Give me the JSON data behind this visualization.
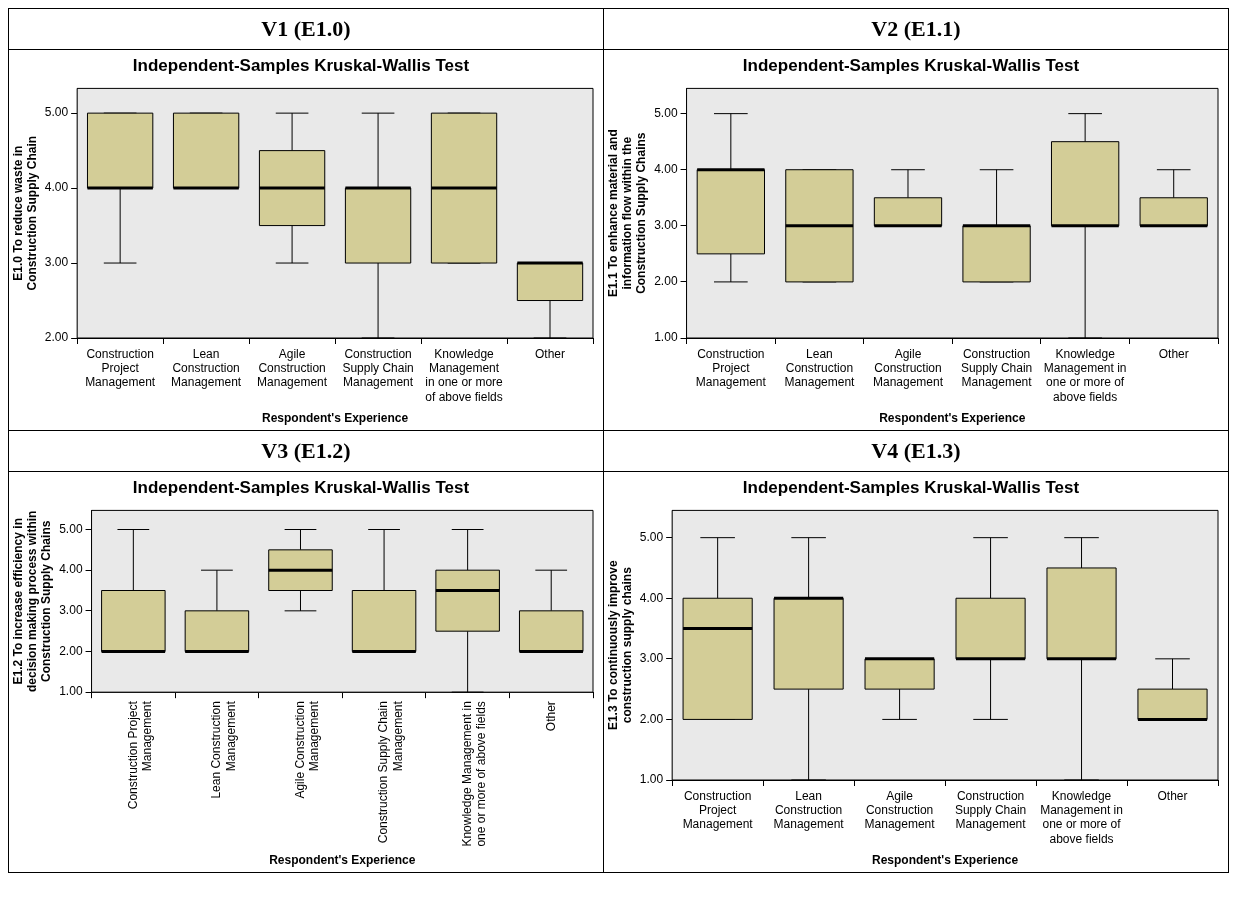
{
  "chart_data": [
    {
      "type": "box",
      "title": "V1 (E1.0)",
      "subtitle": "Independent-Samples Kruskal-Wallis Test",
      "xlabel": "Respondent's Experience",
      "ylabel": "E1.0 To reduce waste in Construction Supply Chain",
      "color": "#d3cd97",
      "categories": [
        "Construction Project Management",
        "Lean Construction Management",
        "Agile Construction Management",
        "Construction Supply Chain Management",
        "Knowledge Management in one or more of above fields",
        "Other"
      ],
      "boxes": [
        {
          "low": 3,
          "q1": 4,
          "median": 4,
          "q3": 5,
          "high": 5
        },
        {
          "low": 4,
          "q1": 4,
          "median": 4,
          "q3": 5,
          "high": 5
        },
        {
          "low": 3,
          "q1": 3.5,
          "median": 4,
          "q3": 4.5,
          "high": 5
        },
        {
          "low": 2,
          "q1": 3,
          "median": 4,
          "q3": 4,
          "high": 5
        },
        {
          "low": 3,
          "q1": 3,
          "median": 4,
          "q3": 5,
          "high": 5
        },
        {
          "low": 2,
          "q1": 2.5,
          "median": 3,
          "q3": 3,
          "high": 3
        }
      ],
      "ylim": [
        2,
        5.33
      ],
      "yticks": [
        {
          "value": 2,
          "label": "2.00"
        },
        {
          "value": 3,
          "label": "3.00"
        },
        {
          "value": 4,
          "label": "4.00"
        },
        {
          "value": 5,
          "label": "5.00"
        }
      ]
    },
    {
      "type": "box",
      "title": "V2 (E1.1)",
      "subtitle": "Independent-Samples Kruskal-Wallis Test",
      "xlabel": "Respondent's Experience",
      "ylabel": "E1.1 To enhance material and information flow within the Construction Supply Chains",
      "color": "#d3cd97",
      "categories": [
        "Construction Project Management",
        "Lean Construction Management",
        "Agile Construction Management",
        "Construction Supply Chain Management",
        "Knowledge Management in one or more of above fields",
        "Other"
      ],
      "boxes": [
        {
          "low": 2,
          "q1": 2.5,
          "median": 4,
          "q3": 4,
          "high": 5
        },
        {
          "low": 2,
          "q1": 2,
          "median": 3,
          "q3": 4,
          "high": 4
        },
        {
          "low": 3,
          "q1": 3,
          "median": 3,
          "q3": 3.5,
          "high": 4
        },
        {
          "low": 2,
          "q1": 2,
          "median": 3,
          "q3": 3,
          "high": 4
        },
        {
          "low": 1,
          "q1": 3,
          "median": 3,
          "q3": 4.5,
          "high": 5
        },
        {
          "low": 3,
          "q1": 3,
          "median": 3,
          "q3": 3.5,
          "high": 4
        }
      ],
      "ylim": [
        1,
        5.45
      ],
      "yticks": [
        {
          "value": 1,
          "label": "1.00"
        },
        {
          "value": 2,
          "label": "2.00"
        },
        {
          "value": 3,
          "label": "3.00"
        },
        {
          "value": 4,
          "label": "4.00"
        },
        {
          "value": 5,
          "label": "5.00"
        }
      ]
    },
    {
      "type": "box",
      "title": "V3 (E1.2)",
      "subtitle": "Independent-Samples Kruskal-Wallis Test",
      "xlabel": "Respondent's Experience",
      "ylabel": "E1.2 To increase efficiency in decision making process within Construction Supply Chains",
      "color": "#d3cd97",
      "categories": [
        "Construction Project Management",
        "Lean Construction Management",
        "Agile Construction Management",
        "Construction Supply Chain Management",
        "Knowledge Management in one or more of above fields",
        "Other"
      ],
      "boxes": [
        {
          "low": 2,
          "q1": 2,
          "median": 2,
          "q3": 3.5,
          "high": 5
        },
        {
          "low": 2,
          "q1": 2,
          "median": 2,
          "q3": 3,
          "high": 4
        },
        {
          "low": 3,
          "q1": 3.5,
          "median": 4,
          "q3": 4.5,
          "high": 5
        },
        {
          "low": 2,
          "q1": 2,
          "median": 2,
          "q3": 3.5,
          "high": 5
        },
        {
          "low": 1,
          "q1": 2.5,
          "median": 3.5,
          "q3": 4,
          "high": 5
        },
        {
          "low": 2,
          "q1": 2,
          "median": 2,
          "q3": 3,
          "high": 4
        }
      ],
      "ylim": [
        1,
        5.47
      ],
      "yticks": [
        {
          "value": 1,
          "label": "1.00"
        },
        {
          "value": 2,
          "label": "2.00"
        },
        {
          "value": 3,
          "label": "3.00"
        },
        {
          "value": 4,
          "label": "4.00"
        },
        {
          "value": 5,
          "label": "5.00"
        }
      ]
    },
    {
      "type": "box",
      "title": "V4 (E1.3)",
      "subtitle": "Independent-Samples Kruskal-Wallis Test",
      "xlabel": "Respondent's Experience",
      "ylabel": "E1.3 To continuously improve construction supply chains",
      "color": "#d3cd97",
      "categories": [
        "Construction Project Management",
        "Lean Construction Management",
        "Agile Construction Management",
        "Construction Supply Chain Management",
        "Knowledge Management in one or more of above fields",
        "Other"
      ],
      "boxes": [
        {
          "low": 2,
          "q1": 2,
          "median": 3.5,
          "q3": 4,
          "high": 5
        },
        {
          "low": 1,
          "q1": 2.5,
          "median": 4,
          "q3": 4,
          "high": 5
        },
        {
          "low": 2,
          "q1": 2.5,
          "median": 3,
          "q3": 3,
          "high": 3
        },
        {
          "low": 2,
          "q1": 3,
          "median": 3,
          "q3": 4,
          "high": 5
        },
        {
          "low": 1,
          "q1": 3,
          "median": 3,
          "q3": 4.5,
          "high": 5
        },
        {
          "low": 2,
          "q1": 2,
          "median": 2,
          "q3": 2.5,
          "high": 3
        }
      ],
      "ylim": [
        1,
        5.45
      ],
      "yticks": [
        {
          "value": 1,
          "label": "1.00"
        },
        {
          "value": 2,
          "label": "2.00"
        },
        {
          "value": 3,
          "label": "3.00"
        },
        {
          "value": 4,
          "label": "4.00"
        },
        {
          "value": 5,
          "label": "5.00"
        }
      ]
    }
  ]
}
